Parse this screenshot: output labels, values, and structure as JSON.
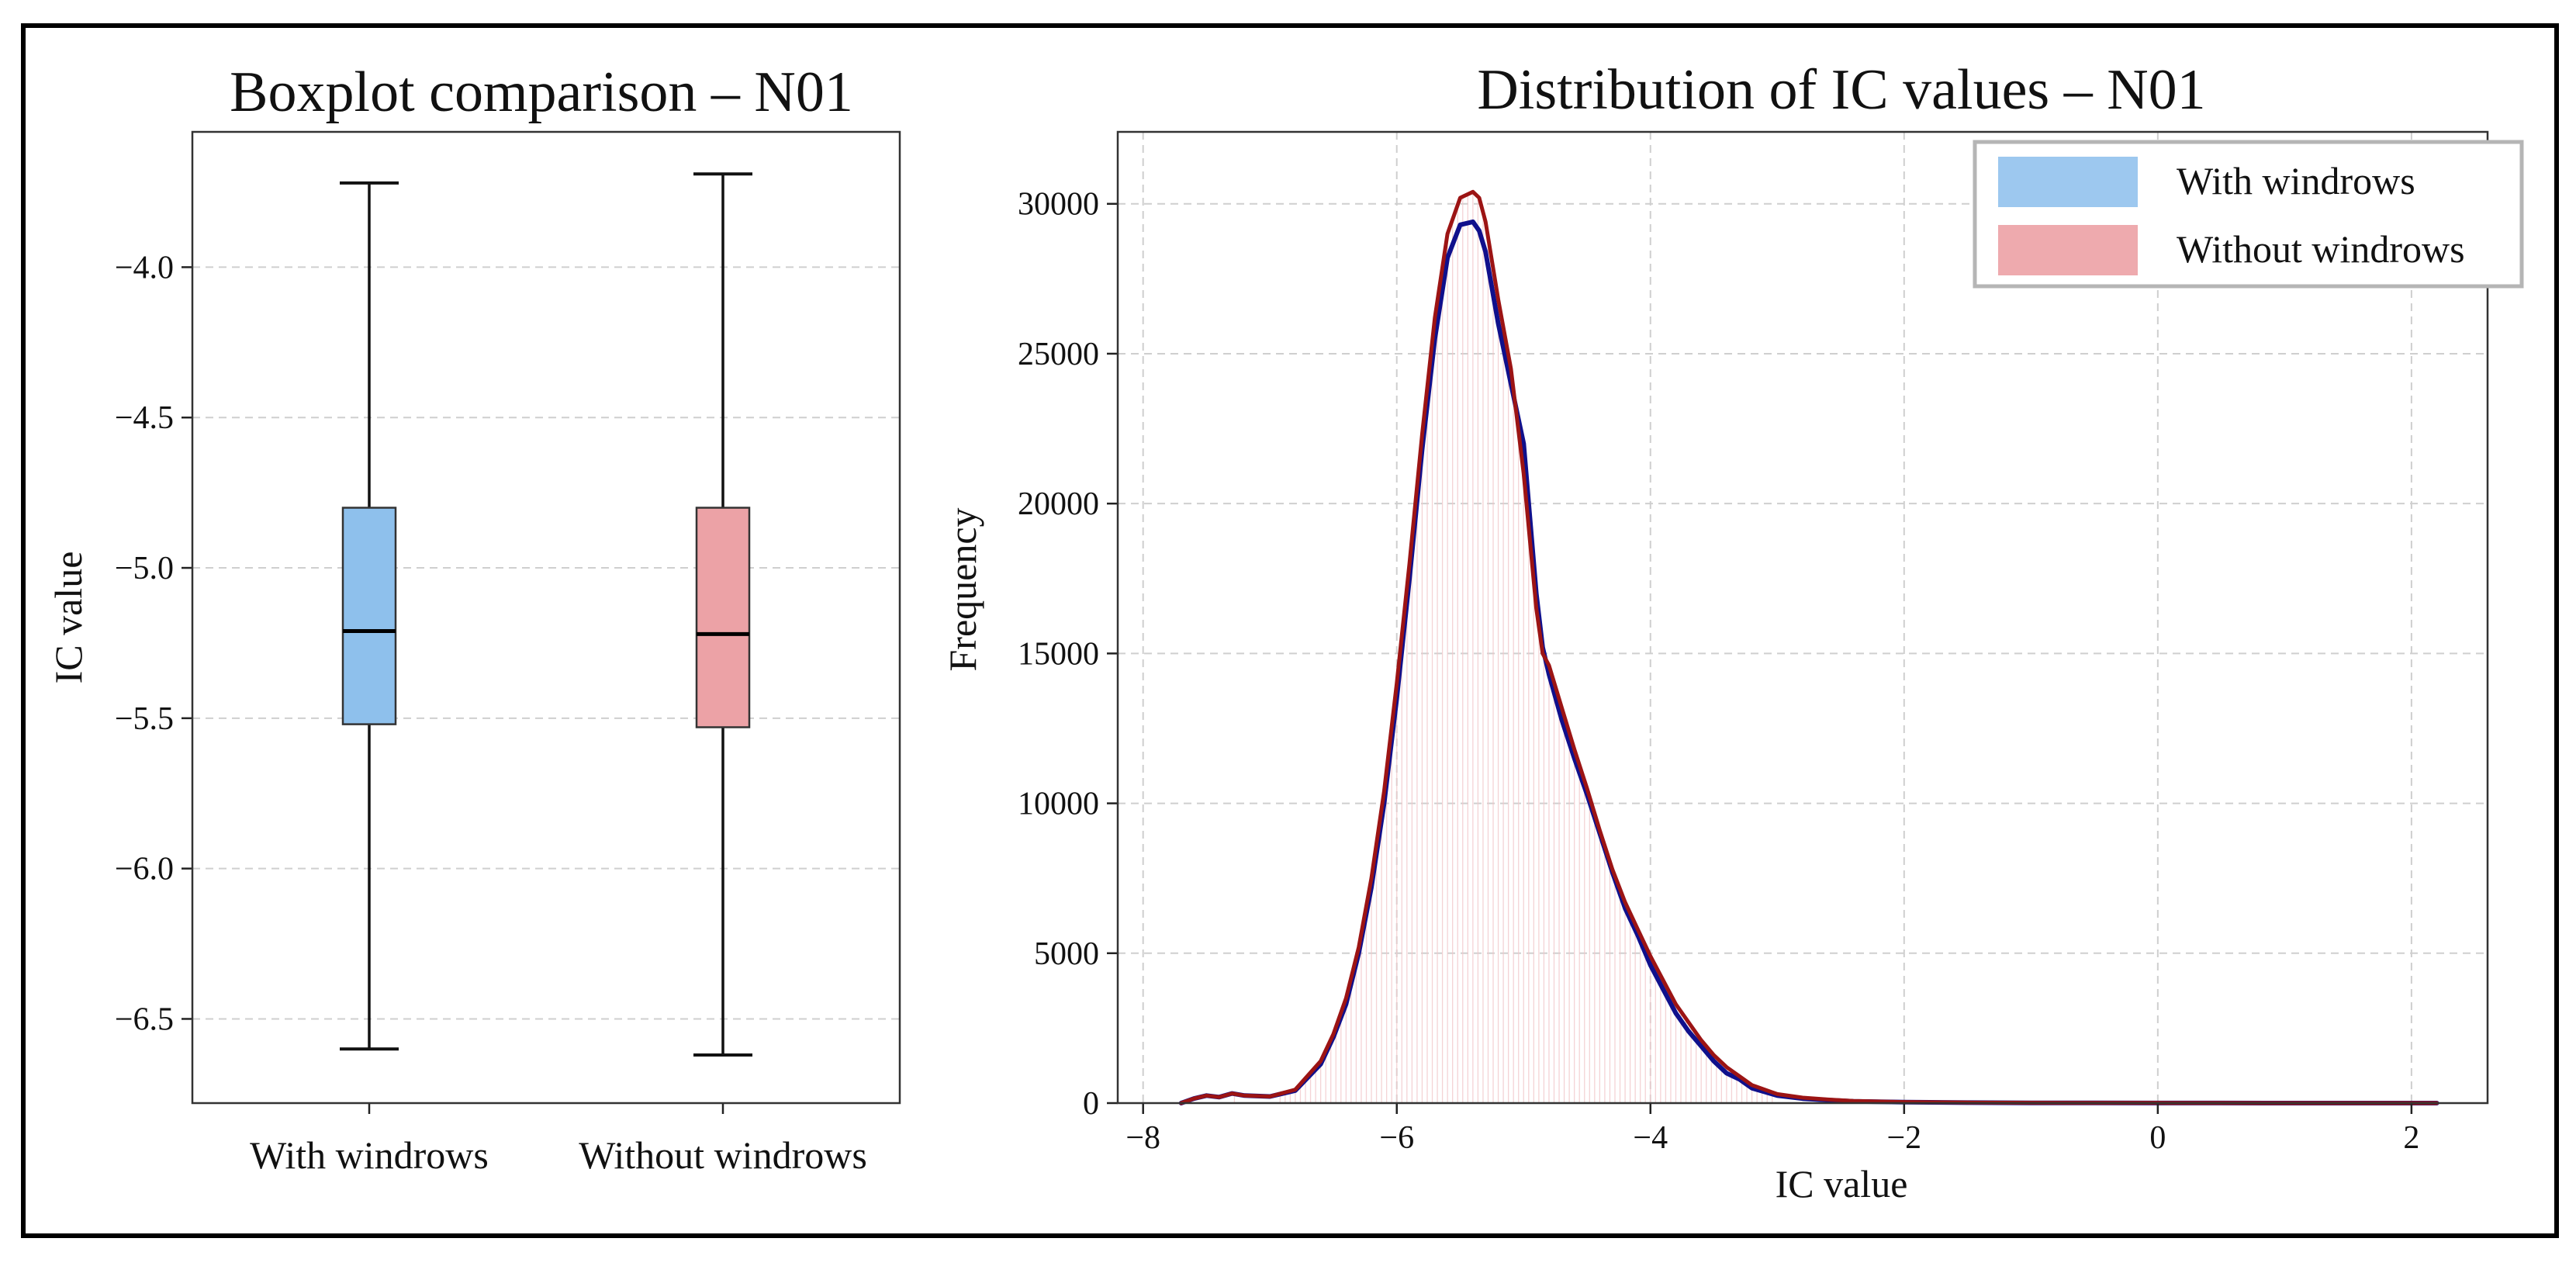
{
  "chart_data": [
    {
      "type": "box",
      "title": "Boxplot comparison – N01",
      "ylabel": "IC value",
      "xlabel": "",
      "ylim": [
        -6.78,
        -3.55
      ],
      "yticks": [
        -4.0,
        -4.5,
        -5.0,
        -5.5,
        -6.0,
        -6.5
      ],
      "ytick_labels": [
        "−4.0",
        "−4.5",
        "−5.0",
        "−5.5",
        "−6.0",
        "−6.5"
      ],
      "grid": true,
      "boxes": [
        {
          "label": "With windrows",
          "whisker_high": -3.72,
          "q3": -4.8,
          "median": -5.21,
          "q1": -5.52,
          "whisker_low": -6.6,
          "color": "#8ec0ec"
        },
        {
          "label": "Without windrows",
          "whisker_high": -3.69,
          "q3": -4.8,
          "median": -5.22,
          "q1": -5.53,
          "whisker_low": -6.62,
          "color": "#eca2a6"
        }
      ]
    },
    {
      "type": "line",
      "title": "Distribution of IC values – N01",
      "xlabel": "IC value",
      "ylabel": "Frequency",
      "xlim": [
        -8.2,
        2.6
      ],
      "ylim": [
        0,
        32400
      ],
      "xticks": [
        -8,
        -6,
        -4,
        -2,
        0,
        2
      ],
      "xtick_labels": [
        "−8",
        "−6",
        "−4",
        "−2",
        "0",
        "2"
      ],
      "yticks": [
        0,
        5000,
        10000,
        15000,
        20000,
        25000,
        30000
      ],
      "ytick_labels": [
        "0",
        "5000",
        "10000",
        "15000",
        "20000",
        "25000",
        "30000"
      ],
      "grid": true,
      "legend_position": "top-right",
      "legend": [
        {
          "label": "With windrows",
          "color": "#9dc8ef"
        },
        {
          "label": "Without windrows",
          "color": "#eeaaae"
        }
      ],
      "series": [
        {
          "name": "With windrows",
          "color": "#10108c",
          "x": [
            -7.7,
            -7.6,
            -7.5,
            -7.4,
            -7.3,
            -7.2,
            -7.0,
            -6.8,
            -6.6,
            -6.5,
            -6.4,
            -6.3,
            -6.2,
            -6.1,
            -6.0,
            -5.9,
            -5.8,
            -5.7,
            -5.6,
            -5.5,
            -5.4,
            -5.35,
            -5.3,
            -5.2,
            -5.1,
            -5.0,
            -4.9,
            -4.85,
            -4.8,
            -4.7,
            -4.6,
            -4.5,
            -4.4,
            -4.3,
            -4.2,
            -4.1,
            -4.0,
            -3.9,
            -3.8,
            -3.7,
            -3.6,
            -3.5,
            -3.4,
            -3.3,
            -3.2,
            -3.0,
            -2.8,
            -2.6,
            -2.4,
            -2.0,
            -1.5,
            -1.0,
            -0.5,
            0.0,
            0.5,
            1.0,
            1.5,
            2.0,
            2.2
          ],
          "y": [
            0,
            150,
            250,
            200,
            320,
            250,
            220,
            420,
            1300,
            2200,
            3300,
            5000,
            7200,
            10000,
            13500,
            17500,
            21800,
            25500,
            28200,
            29300,
            29400,
            29100,
            28400,
            26000,
            24000,
            22000,
            17000,
            15200,
            14300,
            12800,
            11500,
            10300,
            9000,
            7700,
            6500,
            5600,
            4600,
            3800,
            3000,
            2400,
            1900,
            1400,
            1000,
            800,
            500,
            250,
            150,
            100,
            60,
            30,
            15,
            8,
            5,
            3,
            2,
            1,
            0,
            0,
            0
          ]
        },
        {
          "name": "Without windrows",
          "color": "#9c1414",
          "x": [
            -7.7,
            -7.6,
            -7.5,
            -7.4,
            -7.3,
            -7.2,
            -7.0,
            -6.8,
            -6.6,
            -6.5,
            -6.4,
            -6.3,
            -6.2,
            -6.1,
            -6.0,
            -5.9,
            -5.8,
            -5.7,
            -5.6,
            -5.5,
            -5.4,
            -5.35,
            -5.3,
            -5.2,
            -5.1,
            -5.0,
            -4.9,
            -4.85,
            -4.8,
            -4.7,
            -4.6,
            -4.5,
            -4.4,
            -4.3,
            -4.2,
            -4.1,
            -4.0,
            -3.9,
            -3.8,
            -3.7,
            -3.6,
            -3.5,
            -3.4,
            -3.3,
            -3.2,
            -3.0,
            -2.8,
            -2.6,
            -2.4,
            -2.0,
            -1.5,
            -1.0,
            -0.5,
            0.0,
            0.5,
            1.0,
            1.5,
            2.0,
            2.2
          ],
          "y": [
            0,
            150,
            250,
            200,
            320,
            250,
            220,
            450,
            1400,
            2300,
            3500,
            5200,
            7500,
            10400,
            14000,
            18000,
            22300,
            26200,
            29000,
            30200,
            30400,
            30200,
            29400,
            26800,
            24500,
            21000,
            16500,
            15000,
            14600,
            13200,
            11800,
            10500,
            9100,
            7800,
            6700,
            5800,
            4900,
            4100,
            3300,
            2700,
            2100,
            1600,
            1200,
            900,
            600,
            300,
            180,
            120,
            70,
            35,
            18,
            10,
            6,
            4,
            2,
            1,
            0,
            0,
            0
          ]
        }
      ]
    }
  ]
}
